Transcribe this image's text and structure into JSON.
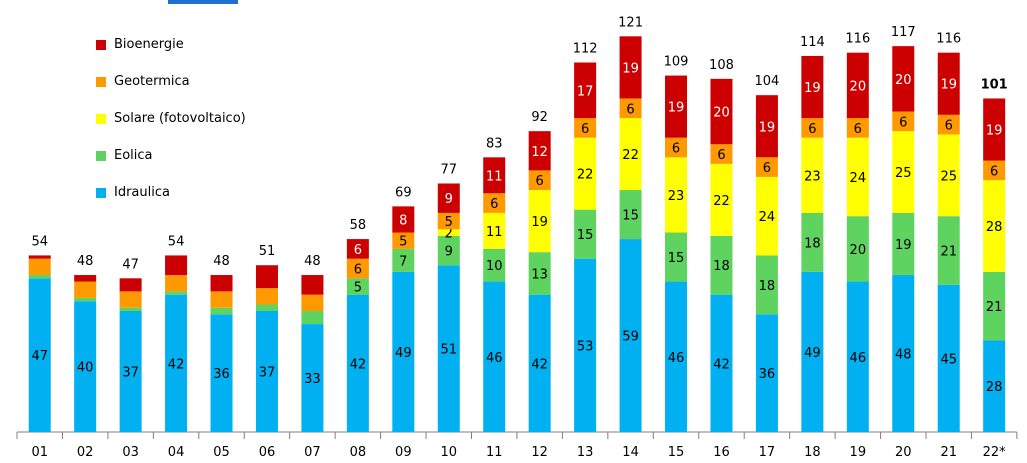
{
  "colors": {
    "Idraulica": "#00b0f0",
    "Eolica": "#5fd35f",
    "Solare": "#ffff00",
    "Geotermica": "#ff9900",
    "Bioenergie": "#cc0000",
    "axis": "#808080",
    "decor": "#1f6fd1"
  },
  "legend": [
    {
      "key": "Bioenergie",
      "label": "Bioenergie"
    },
    {
      "key": "Geotermica",
      "label": "Geotermica"
    },
    {
      "key": "Solare",
      "label": "Solare (fotovoltaico)"
    },
    {
      "key": "Eolica",
      "label": "Eolica"
    },
    {
      "key": "Idraulica",
      "label": "Idraulica"
    }
  ],
  "chart_data": {
    "type": "bar",
    "stacked": true,
    "categories": [
      "01",
      "02",
      "03",
      "04",
      "05",
      "06",
      "07",
      "08",
      "09",
      "10",
      "11",
      "12",
      "13",
      "14",
      "15",
      "16",
      "17",
      "18",
      "19",
      "20",
      "21",
      "22*"
    ],
    "series": [
      {
        "name": "Idraulica",
        "values": [
          47,
          40,
          37,
          42,
          36,
          37,
          33,
          42,
          49,
          51,
          46,
          42,
          53,
          59,
          46,
          42,
          36,
          49,
          46,
          48,
          45,
          28
        ],
        "labels": [
          "47",
          "40",
          "37",
          "42",
          "36",
          "37",
          "33",
          "42",
          "49",
          "51",
          "46",
          "42",
          "53",
          "59",
          "46",
          "42",
          "36",
          "49",
          "46",
          "48",
          "45",
          "28"
        ]
      },
      {
        "name": "Eolica",
        "values": [
          1,
          1,
          1,
          1,
          2,
          2,
          4,
          5,
          7,
          9,
          10,
          13,
          15,
          15,
          15,
          18,
          18,
          18,
          20,
          19,
          21,
          21
        ],
        "labels": [
          "",
          "",
          "",
          "",
          "",
          "",
          "",
          "5",
          "7",
          "9",
          "10",
          "13",
          "15",
          "15",
          "15",
          "18",
          "18",
          "18",
          "20",
          "19",
          "21",
          "21"
        ]
      },
      {
        "name": "Solare (fotovoltaico)",
        "values": [
          0,
          0,
          0,
          0,
          0,
          0,
          0,
          0,
          0,
          2,
          11,
          19,
          22,
          22,
          23,
          22,
          24,
          23,
          24,
          25,
          25,
          28
        ],
        "labels": [
          "",
          "",
          "",
          "",
          "",
          "",
          "",
          "",
          "",
          "2",
          "11",
          "19",
          "22",
          "22",
          "23",
          "22",
          "24",
          "23",
          "24",
          "25",
          "25",
          "28"
        ]
      },
      {
        "name": "Geotermica",
        "values": [
          5,
          5,
          5,
          5,
          5,
          5,
          5,
          6,
          5,
          5,
          6,
          6,
          6,
          6,
          6,
          6,
          6,
          6,
          6,
          6,
          6,
          6
        ],
        "labels": [
          "",
          "",
          "",
          "",
          "",
          "",
          "",
          "6",
          "5",
          "5",
          "6",
          "6",
          "6",
          "6",
          "6",
          "6",
          "6",
          "6",
          "6",
          "6",
          "6",
          "6"
        ]
      },
      {
        "name": "Bioenergie",
        "values": [
          1,
          2,
          4,
          6,
          5,
          7,
          6,
          6,
          8,
          9,
          11,
          12,
          17,
          19,
          19,
          20,
          19,
          19,
          20,
          20,
          19,
          19
        ],
        "labels": [
          "",
          "",
          "",
          "",
          "",
          "",
          "",
          "6",
          "8",
          "9",
          "11",
          "12",
          "17",
          "19",
          "19",
          "20",
          "19",
          "19",
          "20",
          "20",
          "19",
          "19"
        ]
      }
    ],
    "totals": [
      "54",
      "48",
      "47",
      "54",
      "48",
      "51",
      "48",
      "58",
      "69",
      "77",
      "83",
      "92",
      "112",
      "121",
      "109",
      "108",
      "104",
      "114",
      "116",
      "117",
      "116",
      "101"
    ],
    "highlight_index": 21,
    "ylim": [
      0,
      125
    ],
    "grid": false,
    "legend_position": "top-left"
  }
}
